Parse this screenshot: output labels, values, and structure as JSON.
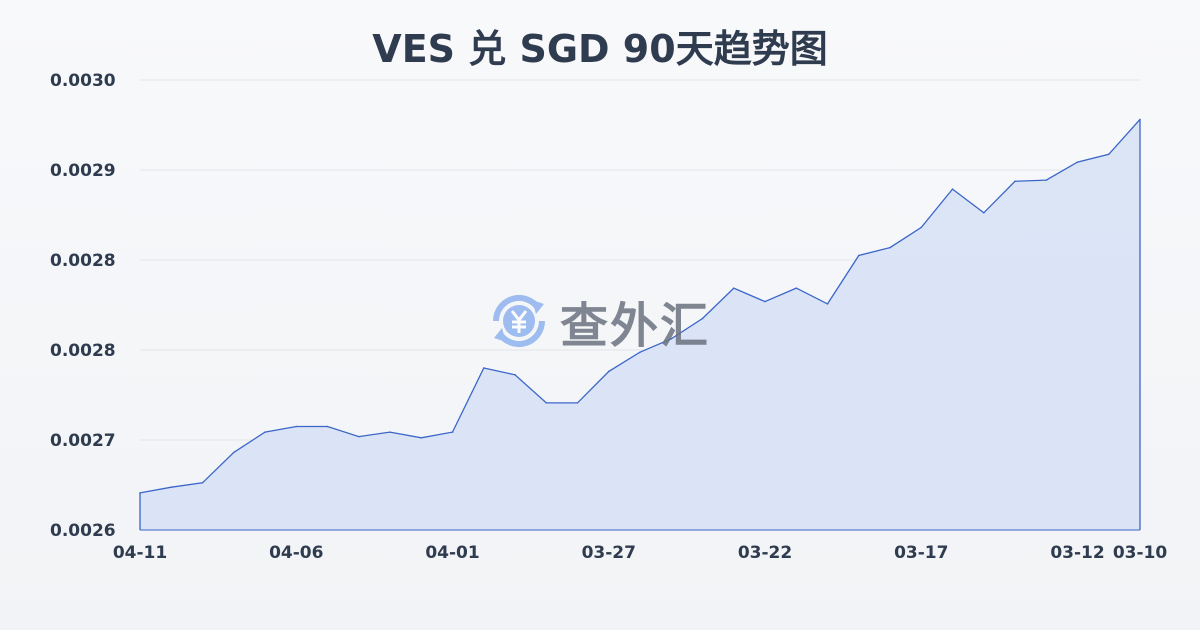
{
  "chart_data": {
    "type": "area",
    "title": "VES 兑 SGD 90天趋势图",
    "xlabel": "",
    "ylabel": "",
    "x_tick_labels": [
      "04-11",
      "04-06",
      "04-01",
      "03-27",
      "03-22",
      "03-17",
      "03-12",
      "03-10"
    ],
    "y_tick_labels": [
      "0.0026",
      "0.0027",
      "0.0028",
      "0.0028",
      "0.0029",
      "0.0030"
    ],
    "ylim": [
      0.0026,
      0.003
    ],
    "grid": true,
    "line_color": "#3b66c9",
    "fill_color": "#d8e2f5",
    "values": [
      0.002633,
      0.002638,
      0.002642,
      0.002669,
      0.002687,
      0.002692,
      0.002692,
      0.002683,
      0.002687,
      0.002682,
      0.002687,
      0.002744,
      0.002738,
      0.002713,
      0.002713,
      0.002741,
      0.002758,
      0.00277,
      0.002788,
      0.002815,
      0.002803,
      0.002815,
      0.002801,
      0.002844,
      0.002851,
      0.002869,
      0.002903,
      0.002882,
      0.00291,
      0.002911,
      0.002927,
      0.002934,
      0.002965
    ]
  },
  "watermark": {
    "text": "查外汇",
    "icon": "yen-exchange-icon"
  }
}
